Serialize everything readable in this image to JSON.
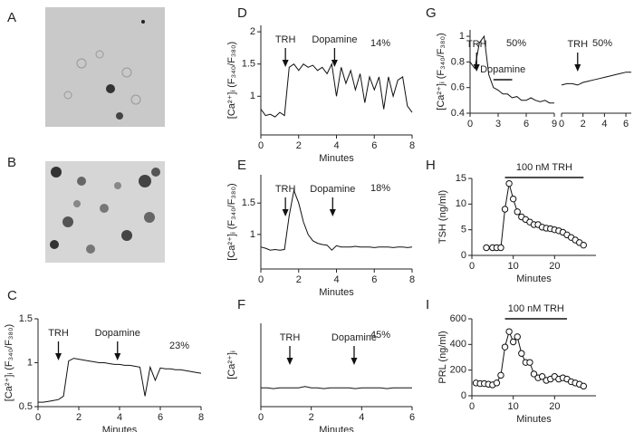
{
  "image_panels": [
    {
      "label": "A"
    },
    {
      "label": "B"
    }
  ],
  "chart_data": [
    {
      "type": "line",
      "label": "C",
      "y_label": "[Ca²⁺]ᵢ (F₃₄₀/F₃₈₀)",
      "x_label": "Minutes",
      "note": "23%",
      "x": [
        0,
        0.25,
        0.5,
        0.75,
        1,
        1.25,
        1.5,
        1.75,
        2,
        2.25,
        2.5,
        2.75,
        3,
        3.25,
        3.5,
        3.75,
        4,
        4.25,
        4.5,
        4.75,
        5,
        5.25,
        5.5,
        5.75,
        6,
        6.25,
        6.5,
        6.75,
        7,
        7.25,
        7.5,
        7.75,
        8
      ],
      "values": [
        0.55,
        0.55,
        0.56,
        0.57,
        0.58,
        0.62,
        1.02,
        1.05,
        1.04,
        1.03,
        1.02,
        1.01,
        1.0,
        1.0,
        0.99,
        0.98,
        0.98,
        0.97,
        0.97,
        0.96,
        0.95,
        0.62,
        0.95,
        0.8,
        0.94,
        0.93,
        0.93,
        0.92,
        0.92,
        0.91,
        0.9,
        0.89,
        0.88
      ],
      "xlim": [
        0,
        8
      ],
      "xticks": [
        0,
        2,
        4,
        6,
        8
      ],
      "ylim": [
        0.5,
        1.5
      ],
      "yticks": [
        0.5,
        1,
        1.5
      ],
      "color": "#111111",
      "annotations": [
        {
          "text": "TRH",
          "x": 1
        },
        {
          "text": "Dopamine",
          "x": 3.9
        }
      ]
    },
    {
      "type": "line",
      "label": "D",
      "y_label": "[Ca²⁺]ᵢ (F₃₄₀/F₃₈₀)",
      "x_label": "Minutes",
      "note": "14%",
      "x": [
        0,
        0.25,
        0.5,
        0.75,
        1,
        1.25,
        1.5,
        1.75,
        2,
        2.25,
        2.5,
        2.75,
        3,
        3.25,
        3.5,
        3.75,
        4,
        4.25,
        4.5,
        4.75,
        5,
        5.25,
        5.5,
        5.75,
        6,
        6.25,
        6.5,
        6.75,
        7,
        7.25,
        7.5,
        7.75,
        8
      ],
      "values": [
        0.8,
        0.7,
        0.72,
        0.68,
        0.75,
        0.7,
        1.45,
        1.5,
        1.4,
        1.5,
        1.45,
        1.48,
        1.4,
        1.45,
        1.35,
        1.5,
        1.0,
        1.45,
        1.2,
        1.4,
        1.1,
        1.35,
        0.9,
        1.3,
        1.1,
        1.3,
        0.8,
        1.3,
        1.0,
        1.25,
        1.3,
        0.85,
        0.75
      ],
      "xlim": [
        0,
        8
      ],
      "xticks": [
        0,
        2,
        4,
        6,
        8
      ],
      "ylim": [
        0.4,
        2.1
      ],
      "yticks": [
        1,
        1.5,
        2
      ],
      "color": "#111111",
      "annotations": [
        {
          "text": "TRH",
          "x": 1.3
        },
        {
          "text": "Dopamine",
          "x": 3.9
        }
      ]
    },
    {
      "type": "line",
      "label": "E",
      "y_label": "[Ca²⁺]ᵢ (F₃₄₀/F₃₈₀)",
      "x_label": "Minutes",
      "note": "18%",
      "x": [
        0,
        0.25,
        0.5,
        0.75,
        1,
        1.25,
        1.5,
        1.75,
        2,
        2.25,
        2.5,
        2.75,
        3,
        3.25,
        3.5,
        3.75,
        4,
        4.25,
        4.5,
        4.75,
        5,
        5.25,
        5.5,
        5.75,
        6,
        6.25,
        6.5,
        6.75,
        7,
        7.25,
        7.5,
        7.75,
        8
      ],
      "values": [
        0.8,
        0.78,
        0.75,
        0.76,
        0.75,
        0.76,
        1.3,
        1.7,
        1.5,
        1.2,
        1.0,
        0.9,
        0.86,
        0.84,
        0.83,
        0.75,
        0.82,
        0.8,
        0.8,
        0.8,
        0.81,
        0.8,
        0.8,
        0.8,
        0.79,
        0.8,
        0.8,
        0.8,
        0.79,
        0.8,
        0.8,
        0.79,
        0.8
      ],
      "xlim": [
        0,
        8
      ],
      "xticks": [
        0,
        2,
        4,
        6,
        8
      ],
      "ylim": [
        0.45,
        1.95
      ],
      "yticks": [
        1,
        1.5
      ],
      "color": "#111111",
      "annotations": [
        {
          "text": "TRH",
          "x": 1.3
        },
        {
          "text": "Dopamine",
          "x": 3.8
        }
      ]
    },
    {
      "type": "line",
      "label": "F",
      "y_label": "[Ca²⁺]ᵢ",
      "x_label": "Minutes",
      "note": "45%",
      "x": [
        0,
        0.25,
        0.5,
        0.75,
        1,
        1.25,
        1.5,
        1.75,
        2,
        2.25,
        2.5,
        2.75,
        3,
        3.25,
        3.5,
        3.75,
        4,
        4.25,
        4.5,
        4.75,
        5,
        5.25,
        5.5,
        5.75,
        6
      ],
      "values": [
        0.67,
        0.67,
        0.66,
        0.67,
        0.67,
        0.67,
        0.67,
        0.69,
        0.67,
        0.67,
        0.66,
        0.67,
        0.67,
        0.67,
        0.67,
        0.66,
        0.67,
        0.67,
        0.67,
        0.67,
        0.66,
        0.67,
        0.67,
        0.67,
        0.67
      ],
      "xlim": [
        0,
        6
      ],
      "xticks": [
        0,
        2,
        4,
        6
      ],
      "ylim": [
        0.4,
        1.6
      ],
      "color": "#111111",
      "annotations": [
        {
          "text": "TRH",
          "x": 1.15
        },
        {
          "text": "Dopamine",
          "x": 3.7
        }
      ]
    },
    {
      "type": "line",
      "label": "G",
      "y_label": "[Ca²⁺]ᵢ (F₃₄₀/F₃₈₀)",
      "note": "50%",
      "x": [
        0,
        0.5,
        1,
        1.5,
        2,
        2.5,
        3,
        3.5,
        4,
        4.5,
        5,
        5.5,
        6,
        6.5,
        7,
        7.5,
        8,
        8.5,
        9
      ],
      "values": [
        0.8,
        0.75,
        0.95,
        1.0,
        0.7,
        0.6,
        0.58,
        0.55,
        0.55,
        0.52,
        0.53,
        0.5,
        0.5,
        0.52,
        0.5,
        0.49,
        0.5,
        0.48,
        0.48
      ],
      "xlim": [
        0,
        9
      ],
      "xticks": [
        0,
        3,
        6,
        9
      ],
      "ylim": [
        0.4,
        1.05
      ],
      "yticks": [
        0.4,
        0.6,
        0.8,
        1
      ],
      "color": "#111111",
      "annotations": [
        {
          "text": "TRH",
          "x": 0.7
        },
        {
          "text": "Dopamine",
          "x": [
            2.5,
            4.5
          ]
        }
      ]
    },
    {
      "type": "line",
      "note": "50%",
      "y_axis": false,
      "x": [
        0,
        0.5,
        1,
        1.5,
        2,
        2.5,
        3,
        3.5,
        4,
        4.5,
        5,
        5.5,
        6,
        6.5
      ],
      "values": [
        0.62,
        0.63,
        0.63,
        0.62,
        0.64,
        0.65,
        0.66,
        0.67,
        0.68,
        0.69,
        0.7,
        0.71,
        0.72,
        0.72
      ],
      "xlim": [
        0,
        6.5
      ],
      "xticks": [
        0,
        2,
        4,
        6
      ],
      "ylim": [
        0.4,
        1.05
      ],
      "color": "#111111",
      "annotations": [
        {
          "text": "TRH",
          "x": 1.5
        }
      ]
    },
    {
      "type": "line",
      "label": "H",
      "y_label": "TSH (ng/ml)",
      "x_label": "Minutes",
      "marker": "circle",
      "x": [
        3.5,
        5,
        6,
        7,
        8,
        9,
        10,
        11,
        12,
        13,
        14,
        15,
        16,
        17,
        18,
        19,
        20,
        21,
        22,
        23,
        24,
        25,
        26,
        27
      ],
      "values": [
        1.5,
        1.5,
        1.5,
        1.5,
        9,
        14,
        11,
        8.5,
        7.5,
        7,
        6.5,
        6,
        6,
        5.5,
        5.3,
        5.2,
        5,
        4.8,
        4.5,
        4,
        3.5,
        3,
        2.5,
        2
      ],
      "xlim": [
        0,
        30
      ],
      "xticks": [
        0,
        10,
        20
      ],
      "ylim": [
        0,
        15
      ],
      "yticks": [
        0,
        5,
        10,
        15
      ],
      "color": "#111111",
      "annotations": [
        {
          "text": "100 nM TRH",
          "x": [
            8,
            27
          ]
        }
      ]
    },
    {
      "type": "line",
      "label": "I",
      "y_label": "PRL (ng/ml)",
      "x_label": "Minutes",
      "marker": "circle",
      "x": [
        1,
        2,
        3,
        4,
        5,
        6,
        7,
        8,
        9,
        10,
        11,
        12,
        13,
        14,
        15,
        16,
        17,
        18,
        19,
        20,
        21,
        22,
        23,
        24,
        25,
        26,
        27
      ],
      "values": [
        100,
        95,
        95,
        90,
        85,
        100,
        160,
        380,
        500,
        420,
        460,
        330,
        260,
        260,
        170,
        140,
        150,
        120,
        130,
        150,
        130,
        140,
        130,
        110,
        100,
        90,
        75
      ],
      "xlim": [
        0,
        30
      ],
      "xticks": [
        0,
        10,
        20
      ],
      "ylim": [
        0,
        600
      ],
      "yticks": [
        0,
        200,
        400,
        600
      ],
      "color": "#111111",
      "annotations": [
        {
          "text": "100 nM TRH",
          "x": [
            8,
            23
          ]
        }
      ]
    }
  ]
}
